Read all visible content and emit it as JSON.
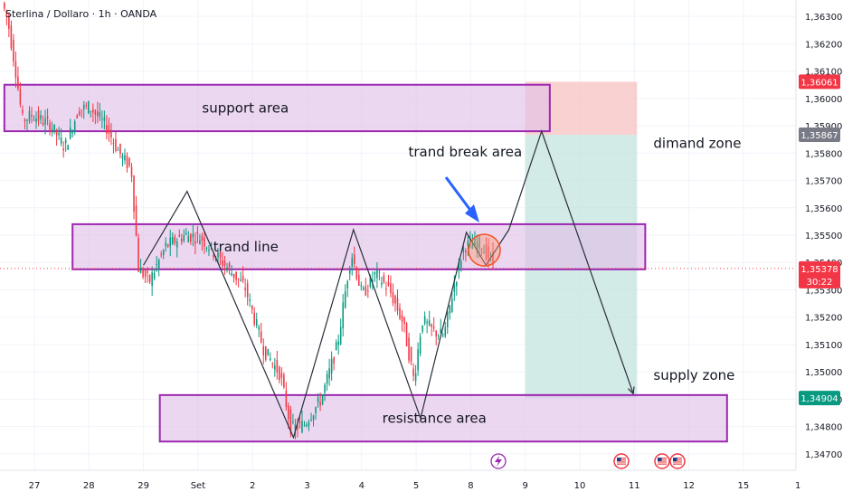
{
  "header": {
    "title": "Sterlina / Dollaro · 1h · OANDA"
  },
  "chart_data": {
    "type": "candlestick",
    "symbol": "GBPUSD",
    "timeframe": "1h",
    "broker": "OANDA",
    "ylim": [
      1.3464,
      1.3636
    ],
    "y_ticks": [
      "1,36300",
      "1,36200",
      "1,36100",
      "1,36000",
      "1,35900",
      "1,35800",
      "1,35700",
      "1,35600",
      "1,35500",
      "1,35400",
      "1,35300",
      "1,35200",
      "1,35100",
      "1,35000",
      "1,34900",
      "1,34800",
      "1,34700"
    ],
    "y_tick_values": [
      1.363,
      1.362,
      1.361,
      1.36,
      1.359,
      1.358,
      1.357,
      1.356,
      1.355,
      1.354,
      1.353,
      1.352,
      1.351,
      1.35,
      1.349,
      1.348,
      1.347
    ],
    "x_ticks": [
      {
        "label": "27",
        "x": 0
      },
      {
        "label": "28",
        "x": 1
      },
      {
        "label": "29",
        "x": 2
      },
      {
        "label": "Set",
        "x": 3
      },
      {
        "label": "2",
        "x": 4
      },
      {
        "label": "3",
        "x": 5
      },
      {
        "label": "4",
        "x": 6
      },
      {
        "label": "5",
        "x": 7
      },
      {
        "label": "8",
        "x": 8
      },
      {
        "label": "9",
        "x": 9
      },
      {
        "label": "10",
        "x": 10
      },
      {
        "label": "11",
        "x": 11
      },
      {
        "label": "12",
        "x": 12
      },
      {
        "label": "15",
        "x": 13
      },
      {
        "label": "1",
        "x": 14
      }
    ],
    "price_labels": [
      {
        "id": "top-red",
        "label": "1,36061",
        "value": 1.36061,
        "color": "#f23645"
      },
      {
        "id": "entry-gray",
        "label": "1,35867",
        "value": 1.35867,
        "color": "#787b86"
      },
      {
        "id": "current",
        "label": "1,35378",
        "sub": "30:22",
        "value": 1.35378,
        "color": "#f23645"
      },
      {
        "id": "target-green",
        "label": "1,34904",
        "value": 1.34904,
        "color": "#089981"
      }
    ],
    "zones": [
      {
        "id": "support",
        "label": "support area",
        "x0": -0.55,
        "x1": 9.45,
        "y0": 1.3588,
        "y1": 1.3605
      },
      {
        "id": "trendline",
        "label": "trand line",
        "x0": 0.7,
        "x1": 11.2,
        "y0": 1.35375,
        "y1": 1.3554
      },
      {
        "id": "resistance",
        "label": "resistance area",
        "x0": 2.3,
        "x1": 12.7,
        "y0": 1.34745,
        "y1": 1.34915
      }
    ],
    "annotations": [
      {
        "id": "trand-break",
        "label": "trand break area",
        "x": 7.9,
        "y": 1.35788
      },
      {
        "id": "dimand",
        "label": "dimand zone",
        "x": 11.35,
        "y": 1.3582
      },
      {
        "id": "supply",
        "label": "supply zone",
        "x": 11.35,
        "y": 1.3497
      }
    ],
    "position": {
      "x0": 9.0,
      "x1": 11.05,
      "entry": 1.35867,
      "stop": 1.36061,
      "target": 1.34904,
      "loss_color": "#f7c1c1",
      "profit_color": "#bfe3dc"
    },
    "zigzag": [
      {
        "x": 2.0,
        "y": 1.3539
      },
      {
        "x": 2.8,
        "y": 1.3566
      },
      {
        "x": 4.75,
        "y": 1.3476
      },
      {
        "x": 5.85,
        "y": 1.3552
      },
      {
        "x": 7.08,
        "y": 1.3483
      },
      {
        "x": 7.92,
        "y": 1.3551
      },
      {
        "x": 8.28,
        "y": 1.3539
      },
      {
        "x": 8.7,
        "y": 1.3552
      },
      {
        "x": 9.3,
        "y": 1.3588
      },
      {
        "x": 10.98,
        "y": 1.3492
      }
    ],
    "circle": {
      "x": 8.25,
      "y": 1.35445,
      "r_price": 0.00058
    },
    "bull_color": "#089981",
    "bear_color": "#f23645",
    "zone_fill": "#e1bee7",
    "zone_border": "#9c27b0"
  }
}
